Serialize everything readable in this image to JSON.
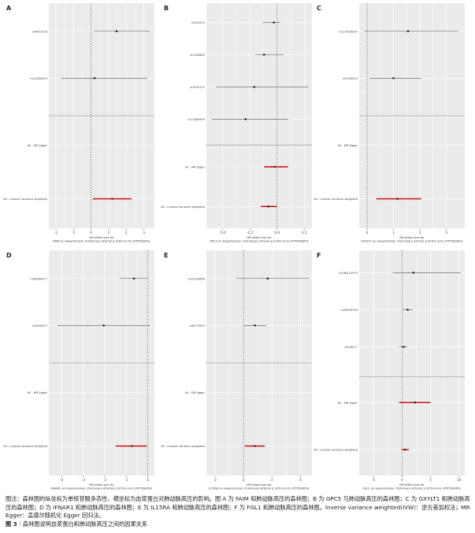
{
  "caption": {
    "note": "图注：森林图的纵坐标为单核苷酸多态性，横坐标为血浆蛋白对肺动脉高压的影响。图 A 为 FAIM 和肺动脉高压的森林图；B 为 GPC5 与肺动脉高压的森林图；C 为 GXYLT1 和肺动脉高压的森林图；D 为 IFNAR1 和肺动脉高压的森林图；E 为 IL15RA 和肺动脉高压的森林图；F 为 FGL1 和肺动脉高压的森林图。Inverse variance weighted(IVW)：逆方差加权法；MR Egger：孟德尔随机化 Egger 回归法。",
    "figure_label": "图 3",
    "figure_title": "｜森林图说明血浆蛋白和肺动脉高压之间的因果关系"
  },
  "colors": {
    "panel_bg": "#ebebeb",
    "grid": "#ffffff",
    "snp_line": "#555555",
    "summary_line": "#cc0000"
  },
  "chart_data": [
    {
      "panel": "A",
      "type": "forest",
      "xlabel": "MR effect size for\nFAIM on Hypertension, Pulmonary Arterial || id:finn-b-I9_HYPTENSPUL",
      "xticks": [
        -2,
        -1,
        0,
        1,
        2,
        3
      ],
      "xlim": [
        -2.4,
        3.6
      ],
      "snps": [
        {
          "label": "rs4431330",
          "est": 1.45,
          "lo": 0.15,
          "hi": 3.35
        },
        {
          "label": "rs11564949",
          "est": 0.2,
          "lo": -1.7,
          "hi": 3.2
        }
      ],
      "summaries": [
        {
          "label": "All - MR Egger",
          "est": null,
          "lo": null,
          "hi": null
        },
        {
          "label": "All - Inverse variance weighted",
          "est": 1.2,
          "lo": 0.1,
          "hi": 2.3
        }
      ]
    },
    {
      "panel": "B",
      "type": "forest",
      "xlabel": "MR effect size for\nGPC5 on Hypertension, Pulmonary Arterial || id:finn-b-I9_HYPTENSPUL",
      "xticks": [
        -5.0,
        -2.5,
        0.0,
        2.5
      ],
      "xlim": [
        -6.5,
        3.2
      ],
      "snps": [
        {
          "label": "rs341553",
          "est": -0.3,
          "lo": -1.3,
          "hi": 0.3
        },
        {
          "label": "rs1330664",
          "est": -1.2,
          "lo": -2.0,
          "hi": 0.6
        },
        {
          "label": "rs1955712",
          "est": -2.1,
          "lo": -5.6,
          "hi": 2.9
        },
        {
          "label": "rs77989999",
          "est": -2.9,
          "lo": -6.0,
          "hi": 1.0
        }
      ],
      "summaries": [
        {
          "label": "All - MR Egger",
          "est": -0.2,
          "lo": -1.2,
          "hi": 1.0
        },
        {
          "label": "All - Inverse variance weighted",
          "est": -0.8,
          "lo": -1.5,
          "hi": 0.0
        }
      ]
    },
    {
      "panel": "C",
      "type": "forest",
      "xlabel": "MR effect size for\nGXYLT1 on Hypertension, Pulmonary Arterial || id:finn-b-I9_HYPTENSPUL",
      "xticks": [
        0,
        1,
        2,
        3
      ],
      "xlim": [
        -0.3,
        3.7
      ],
      "snps": [
        {
          "label": "rs117955097",
          "est": 1.55,
          "lo": -0.1,
          "hi": 3.45
        },
        {
          "label": "rs7055003",
          "est": 1.0,
          "lo": 0.1,
          "hi": 2.05
        }
      ],
      "summaries": [
        {
          "label": "All - MR Egger",
          "est": null,
          "lo": null,
          "hi": null
        },
        {
          "label": "All - Inverse variance weighted",
          "est": 1.15,
          "lo": 0.35,
          "hi": 2.05
        }
      ]
    },
    {
      "panel": "D",
      "type": "forest",
      "xlabel": "MR effect size for\nIFNAR1 on Hypertension, Pulmonary Arterial || id:finn-b-I9_HYPTENSPUL",
      "xticks": [
        -4,
        -3,
        -2,
        -1,
        0
      ],
      "xlim": [
        -4.6,
        0.3
      ],
      "snps": [
        {
          "label": "rs56984071",
          "est": -0.65,
          "lo": -1.3,
          "hi": 0.0
        },
        {
          "label": "rs2834207",
          "est": -2.05,
          "lo": -4.2,
          "hi": 0.1
        }
      ],
      "summaries": [
        {
          "label": "All - MR Egger",
          "est": null,
          "lo": null,
          "hi": null
        },
        {
          "label": "All - Inverse variance weighted",
          "est": -0.75,
          "lo": -1.5,
          "hi": -0.05
        }
      ]
    },
    {
      "panel": "E",
      "type": "forest",
      "xlabel": "MR effect size for\nIL15RA on Hypertension, Pulmonary Arterial || id:finn-b-I9_HYPTENSPUL",
      "xticks": [
        -2,
        0,
        2,
        4
      ],
      "xlim": [
        -2.6,
        4.8
      ],
      "snps": [
        {
          "label": "rs12250060",
          "est": 1.7,
          "lo": -0.5,
          "hi": 4.6
        },
        {
          "label": "rs8177893",
          "est": 0.8,
          "lo": 0.0,
          "hi": 1.6
        }
      ],
      "summaries": [
        {
          "label": "All - MR Egger",
          "est": null,
          "lo": null,
          "hi": null
        },
        {
          "label": "All - Inverse variance weighted",
          "est": 0.8,
          "lo": 0.1,
          "hi": 1.5
        }
      ]
    },
    {
      "panel": "F",
      "type": "forest",
      "xlabel": "MR effect size for\nFGL1 on Hypertension, Pulmonary Arterial || id:finn-b-I9_HYPTENSPUL",
      "xticks": [
        -5,
        0,
        5,
        10
      ],
      "xlim": [
        -7.5,
        11.0
      ],
      "snps": [
        {
          "label": "rs196114970",
          "est": 2.0,
          "lo": -1.6,
          "hi": 10.3
        },
        {
          "label": "rs26999799",
          "est": 1.0,
          "lo": 0.1,
          "hi": 1.9
        },
        {
          "label": "rs418417",
          "est": 0.3,
          "lo": -0.4,
          "hi": 0.9
        }
      ],
      "summaries": [
        {
          "label": "All - MR Egger",
          "est": 2.3,
          "lo": -0.5,
          "hi": 5.0
        },
        {
          "label": "All - Inverse variance weighted",
          "est": 0.5,
          "lo": -0.1,
          "hi": 1.2
        }
      ]
    }
  ]
}
